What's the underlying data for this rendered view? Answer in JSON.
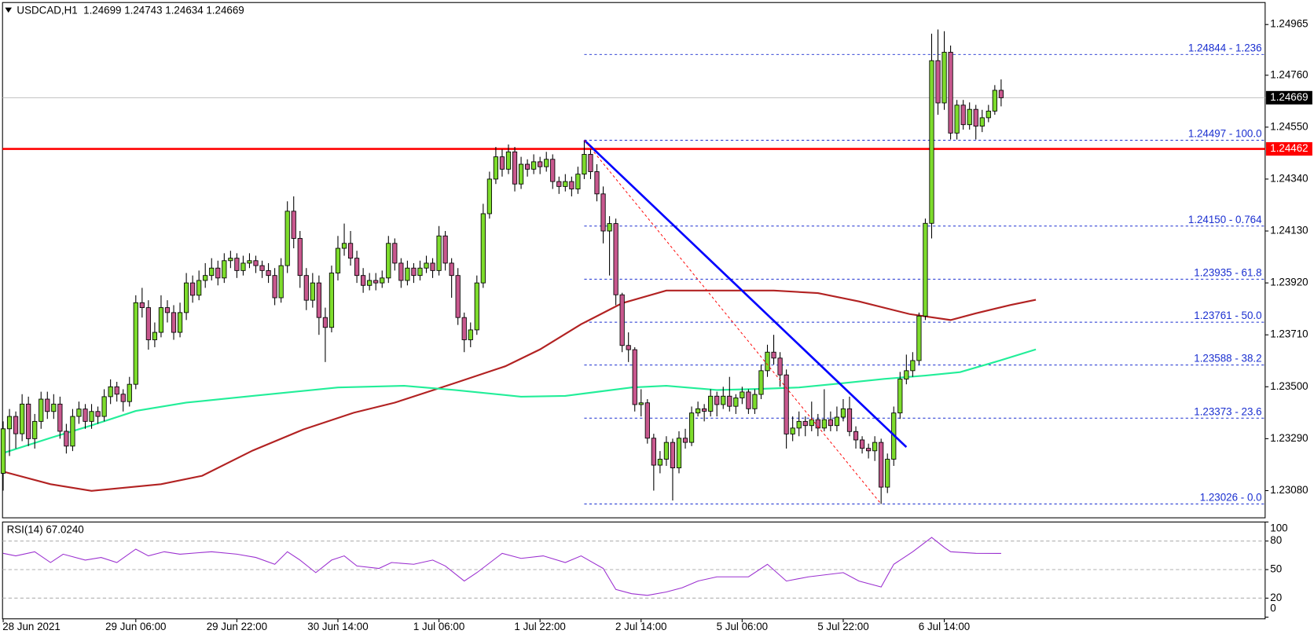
{
  "chart_data": {
    "type": "candlestick",
    "header": "USDCAD,H1  1.24699 1.24743 1.24634 1.24669",
    "up_color": "#7ddc2c",
    "down_color": "#c8588e",
    "xlim": [
      -0.1,
      199.8
    ],
    "xticks": [
      {
        "value": 0,
        "label": "28 Jun 2021"
      },
      {
        "value": 21,
        "label": "29 Jun 06:00"
      },
      {
        "value": 37,
        "label": "29 Jun 22:00"
      },
      {
        "value": 53,
        "label": "30 Jun 14:00"
      },
      {
        "value": 69,
        "label": "1 Jul 06:00"
      },
      {
        "value": 85,
        "label": "1 Jul 22:00"
      },
      {
        "value": 101,
        "label": "2 Jul 14:00"
      },
      {
        "value": 117,
        "label": "5 Jul 06:00"
      },
      {
        "value": 133,
        "label": "5 Jul 22:00"
      },
      {
        "value": 149,
        "label": "6 Jul 14:00"
      }
    ],
    "ylim": [
      1.2297,
      1.25054
    ],
    "yticks": [
      1.24965,
      {
        "value": 1.2476,
        "label": "1.24760"
      },
      {
        "value": 1.2455,
        "label": "1.24550"
      },
      {
        "value": 1.2434,
        "label": "1.24340"
      },
      {
        "value": 1.2413,
        "label": "1.24130"
      },
      {
        "value": 1.2392,
        "label": "1.23920"
      },
      {
        "value": 1.2371,
        "label": "1.23710"
      },
      {
        "value": 1.235,
        "label": "1.23500"
      },
      {
        "value": 1.2329,
        "label": "1.23290"
      },
      {
        "value": 1.2308,
        "label": "1.23080"
      }
    ],
    "current_price": 1.24669,
    "horizontal_line": {
      "value": 1.24462,
      "color": "#ff0000"
    },
    "ohlc": [
      [
        1.2315,
        1.2336,
        1.2308,
        1.2333
      ],
      [
        1.2333,
        1.2341,
        1.2322,
        1.2338
      ],
      [
        1.2338,
        1.234,
        1.2325,
        1.2331
      ],
      [
        1.2331,
        1.2347,
        1.2328,
        1.2343
      ],
      [
        1.2343,
        1.2346,
        1.2326,
        1.2329
      ],
      [
        1.2329,
        1.2339,
        1.2325,
        1.2336
      ],
      [
        1.2336,
        1.2348,
        1.2333,
        1.2345
      ],
      [
        1.2345,
        1.2348,
        1.2337,
        1.234
      ],
      [
        1.234,
        1.2347,
        1.2337,
        1.2343
      ],
      [
        1.2343,
        1.2346,
        1.2329,
        1.2332
      ],
      [
        1.2332,
        1.2335,
        1.2323,
        1.2326
      ],
      [
        1.2326,
        1.2341,
        1.2324,
        1.2338
      ],
      [
        1.2338,
        1.2344,
        1.2335,
        1.2341
      ],
      [
        1.2341,
        1.2343,
        1.2333,
        1.2336
      ],
      [
        1.2336,
        1.2343,
        1.2333,
        1.234
      ],
      [
        1.234,
        1.2342,
        1.2335,
        1.2338
      ],
      [
        1.2338,
        1.2349,
        1.2336,
        1.2346
      ],
      [
        1.2346,
        1.2353,
        1.2343,
        1.235
      ],
      [
        1.235,
        1.2352,
        1.2344,
        1.2347
      ],
      [
        1.2347,
        1.2349,
        1.234,
        1.2344
      ],
      [
        1.2344,
        1.2354,
        1.2342,
        1.2351
      ],
      [
        1.2351,
        1.2387,
        1.2349,
        1.2384
      ],
      [
        1.2384,
        1.239,
        1.2378,
        1.2382
      ],
      [
        1.2382,
        1.2385,
        1.2365,
        1.2369
      ],
      [
        1.2369,
        1.2376,
        1.2366,
        1.2372
      ],
      [
        1.2372,
        1.2387,
        1.237,
        1.2382
      ],
      [
        1.2382,
        1.2385,
        1.2376,
        1.238
      ],
      [
        1.238,
        1.2383,
        1.2369,
        1.2372
      ],
      [
        1.2372,
        1.2384,
        1.237,
        1.238
      ],
      [
        1.238,
        1.2396,
        1.2377,
        1.2392
      ],
      [
        1.2392,
        1.2395,
        1.2384,
        1.2387
      ],
      [
        1.2387,
        1.2397,
        1.2385,
        1.2393
      ],
      [
        1.2393,
        1.24,
        1.239,
        1.2395
      ],
      [
        1.2395,
        1.2402,
        1.2393,
        1.2398
      ],
      [
        1.2398,
        1.2401,
        1.2391,
        1.2394
      ],
      [
        1.2394,
        1.2404,
        1.2392,
        1.2401
      ],
      [
        1.2401,
        1.2405,
        1.2398,
        1.2402
      ],
      [
        1.2402,
        1.2404,
        1.2394,
        1.2397
      ],
      [
        1.2397,
        1.2403,
        1.2395,
        1.24
      ],
      [
        1.24,
        1.2404,
        1.2398,
        1.2401
      ],
      [
        1.2401,
        1.2403,
        1.2396,
        1.2399
      ],
      [
        1.2399,
        1.2401,
        1.2394,
        1.2397
      ],
      [
        1.2397,
        1.24,
        1.2392,
        1.2395
      ],
      [
        1.2395,
        1.2398,
        1.2383,
        1.2386
      ],
      [
        1.2386,
        1.2402,
        1.2384,
        1.2399
      ],
      [
        1.2399,
        1.2425,
        1.2396,
        1.2421
      ],
      [
        1.2421,
        1.2427,
        1.2406,
        1.241
      ],
      [
        1.241,
        1.2413,
        1.239,
        1.2395
      ],
      [
        1.2395,
        1.2398,
        1.2381,
        1.2385
      ],
      [
        1.2385,
        1.2396,
        1.2382,
        1.2392
      ],
      [
        1.2392,
        1.2395,
        1.2371,
        1.2378
      ],
      [
        1.2378,
        1.2382,
        1.236,
        1.2374
      ],
      [
        1.2374,
        1.2399,
        1.2372,
        1.2396
      ],
      [
        1.2396,
        1.2411,
        1.2393,
        1.2406
      ],
      [
        1.2406,
        1.2416,
        1.2403,
        1.2408
      ],
      [
        1.2408,
        1.2413,
        1.2399,
        1.2402
      ],
      [
        1.2402,
        1.2405,
        1.2392,
        1.2395
      ],
      [
        1.2395,
        1.2398,
        1.2388,
        1.2391
      ],
      [
        1.2391,
        1.2396,
        1.2389,
        1.2393
      ],
      [
        1.2393,
        1.2396,
        1.2389,
        1.2392
      ],
      [
        1.2392,
        1.2397,
        1.239,
        1.2394
      ],
      [
        1.2394,
        1.2411,
        1.2392,
        1.2408
      ],
      [
        1.2408,
        1.241,
        1.2397,
        1.24
      ],
      [
        1.24,
        1.2402,
        1.239,
        1.2393
      ],
      [
        1.2393,
        1.2401,
        1.2391,
        1.2398
      ],
      [
        1.2398,
        1.24,
        1.2392,
        1.2395
      ],
      [
        1.2395,
        1.2401,
        1.2393,
        1.2398
      ],
      [
        1.2398,
        1.2403,
        1.2396,
        1.24
      ],
      [
        1.24,
        1.2402,
        1.2394,
        1.2397
      ],
      [
        1.2397,
        1.2415,
        1.2395,
        1.2411
      ],
      [
        1.2411,
        1.2413,
        1.2397,
        1.24
      ],
      [
        1.24,
        1.2402,
        1.2386,
        1.2395
      ],
      [
        1.2395,
        1.2398,
        1.2375,
        1.2378
      ],
      [
        1.2378,
        1.238,
        1.2364,
        1.2369
      ],
      [
        1.2369,
        1.2376,
        1.2366,
        1.2373
      ],
      [
        1.2373,
        1.2395,
        1.2371,
        1.2392
      ],
      [
        1.2392,
        1.2424,
        1.239,
        1.242
      ],
      [
        1.242,
        1.2437,
        1.2418,
        1.2434
      ],
      [
        1.2434,
        1.2447,
        1.2432,
        1.2443
      ],
      [
        1.2443,
        1.2446,
        1.2435,
        1.2438
      ],
      [
        1.2438,
        1.2448,
        1.2436,
        1.2445
      ],
      [
        1.2445,
        1.2447,
        1.2429,
        1.2432
      ],
      [
        1.2432,
        1.2443,
        1.243,
        1.244
      ],
      [
        1.244,
        1.2442,
        1.2435,
        1.2438
      ],
      [
        1.2438,
        1.2444,
        1.2436,
        1.2441
      ],
      [
        1.2441,
        1.2443,
        1.2436,
        1.2439
      ],
      [
        1.2439,
        1.2445,
        1.2437,
        1.2442
      ],
      [
        1.2442,
        1.2444,
        1.243,
        1.2433
      ],
      [
        1.2433,
        1.2435,
        1.2428,
        1.2431
      ],
      [
        1.2431,
        1.2436,
        1.2429,
        1.2433
      ],
      [
        1.2433,
        1.2435,
        1.2427,
        1.243
      ],
      [
        1.243,
        1.2439,
        1.2428,
        1.2436
      ],
      [
        1.2436,
        1.24497,
        1.2434,
        1.2444
      ],
      [
        1.2444,
        1.2446,
        1.2434,
        1.2437
      ],
      [
        1.2437,
        1.244,
        1.2425,
        1.2428
      ],
      [
        1.2428,
        1.2431,
        1.2408,
        1.2413
      ],
      [
        1.2413,
        1.2419,
        1.2395,
        1.2416
      ],
      [
        1.2416,
        1.2418,
        1.2383,
        1.23872
      ],
      [
        1.23872,
        1.2388,
        1.2364,
        1.23667
      ],
      [
        1.23667,
        1.2372,
        1.236,
        1.2365
      ],
      [
        1.2365,
        1.2366,
        1.234,
        1.23428
      ],
      [
        1.23428,
        1.2349,
        1.2338,
        1.23435
      ],
      [
        1.23435,
        1.2345,
        1.2327,
        1.23292
      ],
      [
        1.23292,
        1.2331,
        1.2308,
        1.23183
      ],
      [
        1.23183,
        1.2324,
        1.2315,
        1.23207
      ],
      [
        1.23207,
        1.233,
        1.2318,
        1.23275
      ],
      [
        1.23275,
        1.2329,
        1.2304,
        1.23172
      ],
      [
        1.23172,
        1.2332,
        1.2315,
        1.23292
      ],
      [
        1.23292,
        1.2333,
        1.2325,
        1.23275
      ],
      [
        1.23275,
        1.2342,
        1.2326,
        1.23394
      ],
      [
        1.23394,
        1.2344,
        1.2338,
        1.23411
      ],
      [
        1.23411,
        1.2343,
        1.2336,
        1.23401
      ],
      [
        1.23401,
        1.2349,
        1.2338,
        1.23462
      ],
      [
        1.23462,
        1.2348,
        1.2338,
        1.23428
      ],
      [
        1.23428,
        1.235,
        1.2341,
        1.23462
      ],
      [
        1.23462,
        1.2354,
        1.234,
        1.23421
      ],
      [
        1.23421,
        1.2347,
        1.2339,
        1.23455
      ],
      [
        1.23455,
        1.235,
        1.2343,
        1.23479
      ],
      [
        1.23479,
        1.2349,
        1.2339,
        1.23411
      ],
      [
        1.23411,
        1.2349,
        1.2339,
        1.23469
      ],
      [
        1.23469,
        1.2359,
        1.2345,
        1.23565
      ],
      [
        1.23565,
        1.2367,
        1.2354,
        1.2364
      ],
      [
        1.2364,
        1.2371,
        1.2359,
        1.23616
      ],
      [
        1.23616,
        1.2364,
        1.235,
        1.23548
      ],
      [
        1.23548,
        1.2357,
        1.2325,
        1.23309
      ],
      [
        1.23309,
        1.2338,
        1.2328,
        1.23333
      ],
      [
        1.23333,
        1.234,
        1.233,
        1.2336
      ],
      [
        1.2336,
        1.2338,
        1.233,
        1.23343
      ],
      [
        1.23343,
        1.2344,
        1.2332,
        1.23367
      ],
      [
        1.23367,
        1.2339,
        1.233,
        1.23333
      ],
      [
        1.23333,
        1.2349,
        1.2332,
        1.23367
      ],
      [
        1.23367,
        1.234,
        1.2332,
        1.23343
      ],
      [
        1.23343,
        1.2342,
        1.2332,
        1.23377
      ],
      [
        1.23377,
        1.2345,
        1.2336,
        1.23411
      ],
      [
        1.23411,
        1.2346,
        1.233,
        1.23319
      ],
      [
        1.23319,
        1.2334,
        1.2325,
        1.23285
      ],
      [
        1.23285,
        1.233,
        1.2323,
        1.23251
      ],
      [
        1.23251,
        1.2327,
        1.2321,
        1.23241
      ],
      [
        1.23241,
        1.233,
        1.232,
        1.23275
      ],
      [
        1.23275,
        1.2329,
        1.23026,
        1.23094
      ],
      [
        1.23094,
        1.2323,
        1.2307,
        1.23207
      ],
      [
        1.23207,
        1.2342,
        1.2318,
        1.23394
      ],
      [
        1.23394,
        1.2356,
        1.2337,
        1.23531
      ],
      [
        1.23531,
        1.2363,
        1.2351,
        1.23565
      ],
      [
        1.23565,
        1.2364,
        1.2354,
        1.23606
      ],
      [
        1.23606,
        1.238,
        1.2359,
        1.23786
      ],
      [
        1.23786,
        1.2418,
        1.2377,
        1.24161
      ],
      [
        1.24161,
        1.24928,
        1.241,
        1.24819
      ],
      [
        1.24819,
        1.24945,
        1.246,
        1.24648
      ],
      [
        1.24648,
        1.24938,
        1.2462,
        1.24853
      ],
      [
        1.24853,
        1.2488,
        1.245,
        1.24526
      ],
      [
        1.24526,
        1.2466,
        1.245,
        1.24639
      ],
      [
        1.24639,
        1.2466,
        1.2454,
        1.2456
      ],
      [
        1.2456,
        1.2465,
        1.2454,
        1.24622
      ],
      [
        1.24622,
        1.2464,
        1.245,
        1.24554
      ],
      [
        1.24554,
        1.2462,
        1.2453,
        1.24588
      ],
      [
        1.24588,
        1.2464,
        1.2457,
        1.24615
      ],
      [
        1.24615,
        1.2472,
        1.246,
        1.24699
      ],
      [
        1.24699,
        1.24743,
        1.24634,
        1.24669
      ]
    ],
    "moving_averages": [
      {
        "color": "#b22222",
        "x": [
          0,
          7.5,
          14,
          25,
          31.5,
          39.5,
          47.5,
          55.5,
          62,
          71.5,
          79.5,
          85,
          91.5,
          98,
          105,
          113,
          122,
          129,
          135.5,
          143.5,
          150,
          154,
          159.5,
          163.5
        ],
        "values": [
          1.23157,
          1.23106,
          1.23079,
          1.23106,
          1.2314,
          1.23242,
          1.23327,
          1.23395,
          1.23436,
          1.23515,
          1.23583,
          1.23651,
          1.23753,
          1.23838,
          1.23889,
          1.23889,
          1.23889,
          1.23879,
          1.23845,
          1.23794,
          1.2377,
          1.23797,
          1.23831,
          1.23852
        ]
      },
      {
        "color": "#22ee99",
        "x": [
          0,
          7.5,
          14,
          21,
          29,
          39.5,
          53,
          63.5,
          71.5,
          82,
          89,
          99.5,
          105,
          113,
          119.5,
          126,
          133,
          139.5,
          146,
          151.5,
          157,
          163.5
        ],
        "values": [
          1.23232,
          1.23293,
          1.23344,
          1.23402,
          1.23436,
          1.23463,
          1.23497,
          1.23504,
          1.23487,
          1.2346,
          1.23463,
          1.23497,
          1.23504,
          1.23487,
          1.23491,
          1.23497,
          1.23515,
          1.23532,
          1.23545,
          1.23559,
          1.236,
          1.23651
        ]
      }
    ],
    "trendlines": [
      {
        "color": "#0000ff",
        "dashed": false,
        "x": [
          92,
          143
        ],
        "values": [
          1.24497,
          1.23256
        ]
      },
      {
        "color": "#ff0000",
        "dashed": true,
        "x": [
          92,
          139
        ],
        "values": [
          1.24497,
          1.23026
        ]
      }
    ],
    "fibonacci": {
      "color": "#1a2fd0",
      "x_start": 92,
      "levels": [
        {
          "value": 1.24844,
          "label": "1.24844 - 1.236"
        },
        {
          "value": 1.24497,
          "label": "1.24497 - 100.0"
        },
        {
          "value": 1.2415,
          "label": "1.24150 - 0.764"
        },
        {
          "value": 1.23935,
          "label": "1.23935 - 61.8"
        },
        {
          "value": 1.23761,
          "label": "1.23761 - 50.0"
        },
        {
          "value": 1.23588,
          "label": "1.23588 - 38.2"
        },
        {
          "value": 1.23373,
          "label": "1.23373 - 23.6"
        },
        {
          "value": 1.23026,
          "label": "1.23026 - 0.0"
        }
      ]
    },
    "rsi": {
      "title": "RSI(14) 67.0240",
      "color": "#9b30d0",
      "ylim": [
        0,
        100
      ],
      "yticks": [
        100,
        80,
        50,
        20,
        0
      ],
      "levels": [
        80,
        50,
        20
      ],
      "x": [
        0,
        2,
        5,
        7.5,
        9.5,
        13,
        15.5,
        18,
        21,
        23,
        25.5,
        28,
        33,
        37,
        40,
        43,
        45,
        47,
        49.5,
        52,
        54,
        56,
        59.5,
        61.5,
        65,
        68,
        70,
        73,
        75,
        79,
        82,
        85.5,
        89,
        91.5,
        95,
        97,
        99.5,
        102,
        105,
        107.5,
        110,
        113,
        118,
        121,
        124,
        127.5,
        133,
        135.5,
        139,
        141,
        144,
        147,
        149,
        150,
        154,
        158
      ],
      "values": [
        67.1,
        64.4,
        68.8,
        57.4,
        66.2,
        60,
        62.7,
        57.4,
        71.5,
        64.4,
        68.8,
        66.2,
        68.8,
        66.2,
        62.7,
        55.6,
        68.8,
        60,
        46.8,
        60,
        64.4,
        53.8,
        51.2,
        57.4,
        55.6,
        60,
        53.8,
        38,
        46.8,
        67.1,
        61.8,
        64.4,
        57.4,
        64.4,
        51.2,
        29.1,
        24.7,
        22.9,
        26.5,
        30.9,
        38,
        42.4,
        42.4,
        55.6,
        38,
        42.4,
        46.8,
        38,
        31.8,
        55.6,
        68.8,
        83.8,
        73.3,
        68.8,
        67.1,
        67
      ]
    }
  }
}
